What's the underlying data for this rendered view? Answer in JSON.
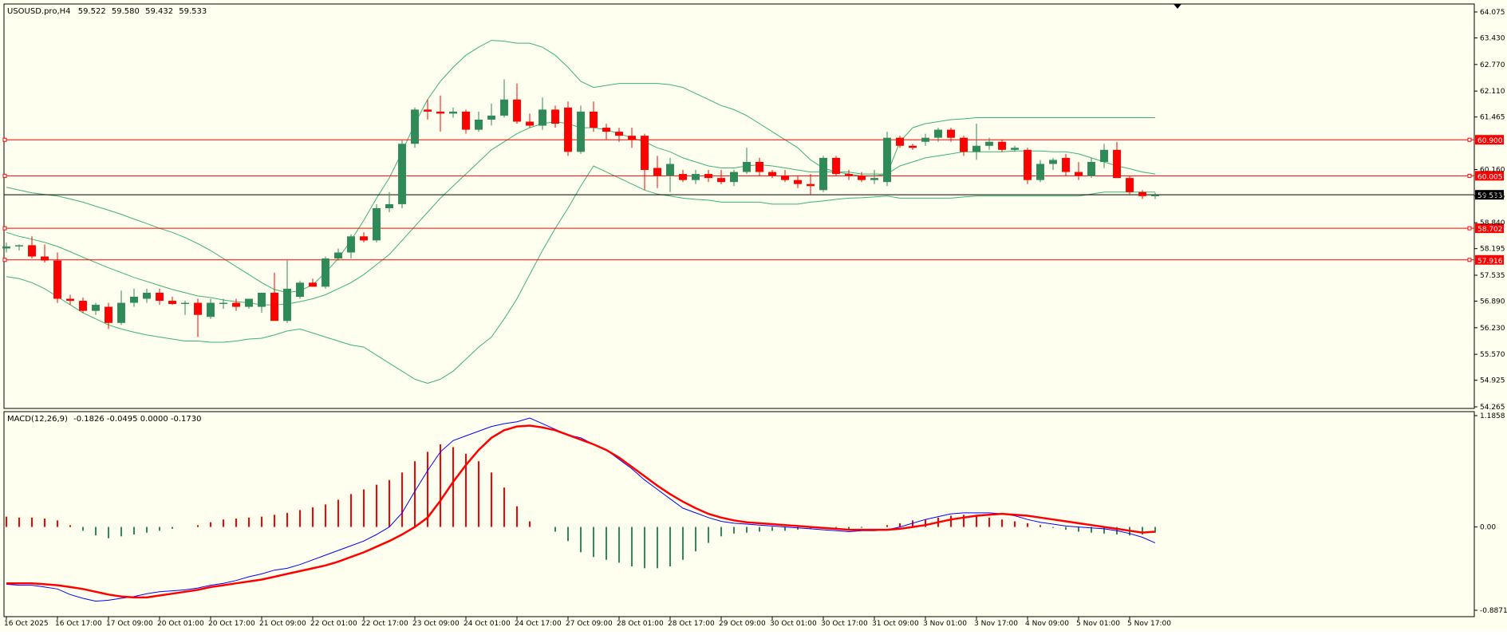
{
  "symbol_info": {
    "symbol": "USOUSD.pro,H4",
    "open": "59.522",
    "high": "59.580",
    "low": "59.432",
    "close": "59.533"
  },
  "macd_info": {
    "label": "MACD(12,26,9)",
    "values": "-0.1826 -0.0495 0.0000 -0.1730"
  },
  "colors": {
    "background": "#fffff0",
    "bull": "#2e8b57",
    "bear": "#ff0000",
    "band": "#3cb371",
    "level_line": "#ff0000",
    "price_line": "#000000",
    "macd_main": "#0000ff",
    "macd_signal": "#ff0000"
  },
  "price_axis": {
    "range": [
      54.265,
      64.075
    ],
    "ticks": [
      "64.075",
      "63.430",
      "62.770",
      "62.110",
      "61.465",
      "60.160",
      "59.505",
      "58.840",
      "58.195",
      "57.535",
      "56.890",
      "56.230",
      "55.570",
      "54.925",
      "54.265"
    ]
  },
  "horizontal_levels": [
    {
      "value": 60.9,
      "label": "60.900"
    },
    {
      "value": 60.005,
      "label": "60.005"
    },
    {
      "value": 58.702,
      "label": "58.702"
    },
    {
      "value": 57.916,
      "label": "57.916"
    }
  ],
  "current_price": {
    "value": 59.533,
    "label": "59.533"
  },
  "macd_axis": {
    "range": [
      -0.8871,
      1.1858
    ],
    "ticks": [
      "1.1858",
      "0.00",
      "-0.8871"
    ]
  },
  "time_axis": {
    "labels": [
      "16 Oct 2025",
      "16 Oct 17:00",
      "17 Oct 09:00",
      "20 Oct 01:00",
      "20 Oct 17:00",
      "21 Oct 09:00",
      "22 Oct 01:00",
      "22 Oct 17:00",
      "23 Oct 09:00",
      "24 Oct 01:00",
      "24 Oct 17:00",
      "27 Oct 09:00",
      "28 Oct 01:00",
      "28 Oct 17:00",
      "29 Oct 09:00",
      "30 Oct 01:00",
      "30 Oct 17:00",
      "31 Oct 09:00",
      "3 Nov 01:00",
      "3 Nov 17:00",
      "4 Nov 09:00",
      "5 Nov 01:00",
      "5 Nov 17:00"
    ],
    "label_every_n_bars": 4
  },
  "chart_data": {
    "type": "candlestick",
    "timeframe": "H4",
    "candles": [
      {
        "o": 58.2,
        "h": 58.35,
        "l": 58.1,
        "c": 58.25
      },
      {
        "o": 58.25,
        "h": 58.3,
        "l": 58.15,
        "c": 58.28
      },
      {
        "o": 58.28,
        "h": 58.5,
        "l": 57.95,
        "c": 58.0
      },
      {
        "o": 58.0,
        "h": 58.3,
        "l": 57.85,
        "c": 57.9
      },
      {
        "o": 57.9,
        "h": 58.1,
        "l": 56.85,
        "c": 56.95
      },
      {
        "o": 56.95,
        "h": 57.05,
        "l": 56.8,
        "c": 56.9
      },
      {
        "o": 56.9,
        "h": 56.98,
        "l": 56.6,
        "c": 56.65
      },
      {
        "o": 56.65,
        "h": 56.85,
        "l": 56.55,
        "c": 56.8
      },
      {
        "o": 56.75,
        "h": 56.85,
        "l": 56.2,
        "c": 56.35
      },
      {
        "o": 56.35,
        "h": 57.15,
        "l": 56.3,
        "c": 56.85
      },
      {
        "o": 56.85,
        "h": 57.2,
        "l": 56.75,
        "c": 57.0
      },
      {
        "o": 56.95,
        "h": 57.2,
        "l": 56.85,
        "c": 57.1
      },
      {
        "o": 57.1,
        "h": 57.2,
        "l": 56.8,
        "c": 56.9
      },
      {
        "o": 56.9,
        "h": 57.0,
        "l": 56.8,
        "c": 56.82
      },
      {
        "o": 56.82,
        "h": 56.9,
        "l": 56.55,
        "c": 56.85
      },
      {
        "o": 56.85,
        "h": 56.95,
        "l": 56.0,
        "c": 56.55
      },
      {
        "o": 56.5,
        "h": 56.95,
        "l": 56.45,
        "c": 56.85
      },
      {
        "o": 56.85,
        "h": 56.95,
        "l": 56.7,
        "c": 56.85
      },
      {
        "o": 56.85,
        "h": 56.95,
        "l": 56.65,
        "c": 56.75
      },
      {
        "o": 56.75,
        "h": 56.95,
        "l": 56.7,
        "c": 56.95
      },
      {
        "o": 56.75,
        "h": 57.05,
        "l": 56.6,
        "c": 57.1
      },
      {
        "o": 57.1,
        "h": 57.6,
        "l": 56.45,
        "c": 56.4
      },
      {
        "o": 56.4,
        "h": 57.9,
        "l": 56.35,
        "c": 57.2
      },
      {
        "o": 57.0,
        "h": 57.4,
        "l": 56.95,
        "c": 57.35
      },
      {
        "o": 57.35,
        "h": 57.45,
        "l": 57.25,
        "c": 57.25
      },
      {
        "o": 57.25,
        "h": 58.0,
        "l": 57.2,
        "c": 57.95
      },
      {
        "o": 57.95,
        "h": 58.2,
        "l": 57.9,
        "c": 58.1
      },
      {
        "o": 58.1,
        "h": 58.55,
        "l": 57.95,
        "c": 58.5
      },
      {
        "o": 58.5,
        "h": 58.6,
        "l": 58.35,
        "c": 58.4
      },
      {
        "o": 58.4,
        "h": 59.3,
        "l": 58.35,
        "c": 59.2
      },
      {
        "o": 59.2,
        "h": 59.6,
        "l": 59.1,
        "c": 59.3
      },
      {
        "o": 59.3,
        "h": 60.9,
        "l": 59.2,
        "c": 60.8
      },
      {
        "o": 60.8,
        "h": 61.7,
        "l": 60.7,
        "c": 61.65
      },
      {
        "o": 61.65,
        "h": 61.9,
        "l": 61.4,
        "c": 61.6
      },
      {
        "o": 61.6,
        "h": 62.0,
        "l": 61.1,
        "c": 61.55
      },
      {
        "o": 61.55,
        "h": 61.7,
        "l": 61.45,
        "c": 61.6
      },
      {
        "o": 61.6,
        "h": 61.65,
        "l": 61.05,
        "c": 61.15
      },
      {
        "o": 61.15,
        "h": 61.6,
        "l": 61.1,
        "c": 61.4
      },
      {
        "o": 61.4,
        "h": 61.8,
        "l": 61.25,
        "c": 61.5
      },
      {
        "o": 61.5,
        "h": 62.4,
        "l": 61.45,
        "c": 61.9
      },
      {
        "o": 61.9,
        "h": 62.3,
        "l": 61.3,
        "c": 61.35
      },
      {
        "o": 61.35,
        "h": 61.55,
        "l": 61.2,
        "c": 61.25
      },
      {
        "o": 61.25,
        "h": 61.95,
        "l": 61.15,
        "c": 61.65
      },
      {
        "o": 61.65,
        "h": 61.75,
        "l": 61.2,
        "c": 61.3
      },
      {
        "o": 61.7,
        "h": 61.85,
        "l": 60.5,
        "c": 60.6
      },
      {
        "o": 60.6,
        "h": 61.75,
        "l": 60.55,
        "c": 61.6
      },
      {
        "o": 61.6,
        "h": 61.85,
        "l": 61.1,
        "c": 61.2
      },
      {
        "o": 61.2,
        "h": 61.3,
        "l": 60.9,
        "c": 61.1
      },
      {
        "o": 61.1,
        "h": 61.2,
        "l": 60.85,
        "c": 61.0
      },
      {
        "o": 61.0,
        "h": 61.2,
        "l": 60.7,
        "c": 60.9
      },
      {
        "o": 61.0,
        "h": 61.05,
        "l": 59.65,
        "c": 60.15
      },
      {
        "o": 60.2,
        "h": 60.5,
        "l": 59.7,
        "c": 60.0
      },
      {
        "o": 60.0,
        "h": 60.45,
        "l": 59.6,
        "c": 60.3
      },
      {
        "o": 60.05,
        "h": 60.15,
        "l": 59.85,
        "c": 59.9
      },
      {
        "o": 59.9,
        "h": 60.15,
        "l": 59.8,
        "c": 60.05
      },
      {
        "o": 60.05,
        "h": 60.15,
        "l": 59.85,
        "c": 59.95
      },
      {
        "o": 59.95,
        "h": 60.15,
        "l": 59.8,
        "c": 59.85
      },
      {
        "o": 59.85,
        "h": 60.15,
        "l": 59.75,
        "c": 60.1
      },
      {
        "o": 60.1,
        "h": 60.7,
        "l": 60.05,
        "c": 60.35
      },
      {
        "o": 60.35,
        "h": 60.45,
        "l": 60.0,
        "c": 60.1
      },
      {
        "o": 60.1,
        "h": 60.15,
        "l": 59.95,
        "c": 60.0
      },
      {
        "o": 60.0,
        "h": 60.15,
        "l": 59.85,
        "c": 59.9
      },
      {
        "o": 59.9,
        "h": 60.0,
        "l": 59.7,
        "c": 59.8
      },
      {
        "o": 59.8,
        "h": 60.05,
        "l": 59.55,
        "c": 59.75
      },
      {
        "o": 59.65,
        "h": 60.5,
        "l": 59.6,
        "c": 60.45
      },
      {
        "o": 60.45,
        "h": 60.5,
        "l": 60.0,
        "c": 60.05
      },
      {
        "o": 60.05,
        "h": 60.15,
        "l": 59.9,
        "c": 60.0
      },
      {
        "o": 60.0,
        "h": 60.1,
        "l": 59.85,
        "c": 59.9
      },
      {
        "o": 59.9,
        "h": 60.15,
        "l": 59.8,
        "c": 59.95
      },
      {
        "o": 59.85,
        "h": 61.1,
        "l": 59.75,
        "c": 60.95
      },
      {
        "o": 60.95,
        "h": 61.0,
        "l": 60.7,
        "c": 60.75
      },
      {
        "o": 60.75,
        "h": 60.8,
        "l": 60.65,
        "c": 60.7
      },
      {
        "o": 60.85,
        "h": 61.05,
        "l": 60.75,
        "c": 60.95
      },
      {
        "o": 60.95,
        "h": 61.2,
        "l": 60.85,
        "c": 61.15
      },
      {
        "o": 61.15,
        "h": 61.2,
        "l": 60.85,
        "c": 60.95
      },
      {
        "o": 60.95,
        "h": 61.0,
        "l": 60.5,
        "c": 60.6
      },
      {
        "o": 60.6,
        "h": 61.3,
        "l": 60.4,
        "c": 60.75
      },
      {
        "o": 60.75,
        "h": 60.95,
        "l": 60.65,
        "c": 60.85
      },
      {
        "o": 60.85,
        "h": 60.9,
        "l": 60.6,
        "c": 60.65
      },
      {
        "o": 60.65,
        "h": 60.75,
        "l": 60.6,
        "c": 60.7
      },
      {
        "o": 60.65,
        "h": 60.7,
        "l": 59.8,
        "c": 59.9
      },
      {
        "o": 59.9,
        "h": 60.4,
        "l": 59.85,
        "c": 60.3
      },
      {
        "o": 60.3,
        "h": 60.45,
        "l": 60.15,
        "c": 60.4
      },
      {
        "o": 60.45,
        "h": 60.55,
        "l": 60.0,
        "c": 60.1
      },
      {
        "o": 60.1,
        "h": 60.35,
        "l": 59.9,
        "c": 60.0
      },
      {
        "o": 60.0,
        "h": 60.45,
        "l": 59.95,
        "c": 60.35
      },
      {
        "o": 60.35,
        "h": 60.8,
        "l": 60.2,
        "c": 60.65
      },
      {
        "o": 60.65,
        "h": 60.85,
        "l": 59.95,
        "c": 59.95
      },
      {
        "o": 59.95,
        "h": 60.0,
        "l": 59.55,
        "c": 59.6
      },
      {
        "o": 59.6,
        "h": 59.65,
        "l": 59.43,
        "c": 59.5
      },
      {
        "o": 59.52,
        "h": 59.58,
        "l": 59.43,
        "c": 59.53
      }
    ],
    "bollinger": {
      "upper": [
        59.72,
        59.65,
        59.58,
        59.54,
        59.5,
        59.43,
        59.35,
        59.25,
        59.15,
        59.05,
        58.93,
        58.82,
        58.7,
        58.6,
        58.47,
        58.32,
        58.15,
        57.95,
        57.75,
        57.55,
        57.35,
        57.18,
        57.1,
        57.15,
        57.3,
        57.6,
        57.95,
        58.4,
        58.9,
        59.45,
        59.95,
        60.6,
        61.3,
        61.9,
        62.35,
        62.7,
        63.0,
        63.2,
        63.37,
        63.35,
        63.3,
        63.3,
        63.2,
        63.0,
        62.7,
        62.35,
        62.2,
        62.25,
        62.3,
        62.3,
        62.3,
        62.3,
        62.27,
        62.2,
        62.05,
        61.9,
        61.75,
        61.65,
        61.5,
        61.3,
        61.1,
        60.9,
        60.7,
        60.4,
        60.2,
        60.1,
        60.05,
        60.0,
        60.0,
        60.05,
        60.85,
        61.2,
        61.3,
        61.35,
        61.4,
        61.42,
        61.45,
        61.45,
        61.45,
        61.45,
        61.45,
        61.45,
        61.45,
        61.45,
        61.45,
        61.45,
        61.45,
        61.45,
        61.45,
        61.45,
        61.45
      ],
      "middle": [
        58.6,
        58.5,
        58.43,
        58.35,
        58.25,
        58.12,
        57.98,
        57.85,
        57.72,
        57.6,
        57.48,
        57.38,
        57.28,
        57.18,
        57.1,
        57.02,
        56.98,
        56.92,
        56.88,
        56.85,
        56.8,
        56.8,
        56.82,
        56.88,
        56.95,
        57.05,
        57.2,
        57.35,
        57.55,
        57.8,
        58.05,
        58.4,
        58.75,
        59.1,
        59.45,
        59.75,
        60.05,
        60.35,
        60.65,
        60.85,
        61.05,
        61.2,
        61.3,
        61.35,
        61.3,
        61.2,
        61.2,
        61.15,
        61.05,
        60.95,
        60.85,
        60.7,
        60.6,
        60.45,
        60.35,
        60.25,
        60.2,
        60.2,
        60.25,
        60.28,
        60.25,
        60.2,
        60.15,
        60.1,
        60.1,
        60.1,
        60.1,
        60.05,
        60.05,
        60.05,
        60.25,
        60.35,
        60.45,
        60.5,
        60.55,
        60.6,
        60.6,
        60.6,
        60.6,
        60.62,
        60.62,
        60.62,
        60.6,
        60.6,
        60.55,
        60.45,
        60.35,
        60.25,
        60.18,
        60.1,
        60.05
      ],
      "lower": [
        57.5,
        57.45,
        57.35,
        57.2,
        57.0,
        56.8,
        56.6,
        56.45,
        56.3,
        56.2,
        56.12,
        56.05,
        56.0,
        55.95,
        55.9,
        55.9,
        55.87,
        55.87,
        55.9,
        55.95,
        55.97,
        56.05,
        56.15,
        56.2,
        56.1,
        56.0,
        55.9,
        55.8,
        55.75,
        55.55,
        55.35,
        55.15,
        54.95,
        54.85,
        54.95,
        55.15,
        55.45,
        55.75,
        56.0,
        56.45,
        56.95,
        57.55,
        58.15,
        58.7,
        59.2,
        59.75,
        60.25,
        60.1,
        59.95,
        59.8,
        59.65,
        59.55,
        59.5,
        59.45,
        59.42,
        59.4,
        59.35,
        59.35,
        59.35,
        59.35,
        59.3,
        59.3,
        59.3,
        59.35,
        59.38,
        59.42,
        59.45,
        59.46,
        59.48,
        59.5,
        59.45,
        59.45,
        59.45,
        59.45,
        59.45,
        59.48,
        59.5,
        59.5,
        59.5,
        59.5,
        59.5,
        59.5,
        59.5,
        59.5,
        59.5,
        59.55,
        59.6,
        59.6,
        59.6,
        59.6,
        59.6
      ]
    },
    "macd": {
      "main": [
        -0.61,
        -0.62,
        -0.62,
        -0.64,
        -0.66,
        -0.72,
        -0.76,
        -0.79,
        -0.78,
        -0.76,
        -0.74,
        -0.71,
        -0.69,
        -0.68,
        -0.67,
        -0.65,
        -0.62,
        -0.6,
        -0.57,
        -0.53,
        -0.5,
        -0.46,
        -0.44,
        -0.4,
        -0.35,
        -0.3,
        -0.25,
        -0.2,
        -0.15,
        -0.08,
        0.0,
        0.15,
        0.38,
        0.6,
        0.8,
        0.92,
        0.97,
        1.02,
        1.07,
        1.1,
        1.12,
        1.16,
        1.1,
        1.04,
        0.98,
        0.95,
        0.88,
        0.82,
        0.72,
        0.62,
        0.5,
        0.4,
        0.3,
        0.2,
        0.15,
        0.1,
        0.06,
        0.04,
        0.03,
        0.02,
        0.01,
        0.0,
        -0.01,
        -0.02,
        -0.03,
        -0.04,
        -0.05,
        -0.04,
        -0.04,
        -0.03,
        0.0,
        0.04,
        0.08,
        0.11,
        0.14,
        0.15,
        0.15,
        0.15,
        0.14,
        0.12,
        0.08,
        0.05,
        0.03,
        0.01,
        0.0,
        -0.01,
        -0.02,
        -0.04,
        -0.07,
        -0.11,
        -0.17
      ],
      "signal": [
        -0.6,
        -0.6,
        -0.6,
        -0.61,
        -0.62,
        -0.64,
        -0.66,
        -0.69,
        -0.72,
        -0.74,
        -0.75,
        -0.75,
        -0.73,
        -0.71,
        -0.69,
        -0.67,
        -0.64,
        -0.62,
        -0.6,
        -0.58,
        -0.56,
        -0.53,
        -0.5,
        -0.47,
        -0.44,
        -0.41,
        -0.37,
        -0.32,
        -0.27,
        -0.21,
        -0.15,
        -0.08,
        0.0,
        0.1,
        0.28,
        0.48,
        0.66,
        0.82,
        0.95,
        1.03,
        1.07,
        1.08,
        1.06,
        1.03,
        0.98,
        0.93,
        0.88,
        0.82,
        0.74,
        0.64,
        0.54,
        0.44,
        0.35,
        0.27,
        0.2,
        0.14,
        0.1,
        0.07,
        0.05,
        0.04,
        0.03,
        0.02,
        0.01,
        0.0,
        -0.01,
        -0.02,
        -0.03,
        -0.03,
        -0.03,
        -0.03,
        -0.02,
        0.0,
        0.02,
        0.05,
        0.08,
        0.1,
        0.12,
        0.13,
        0.14,
        0.13,
        0.12,
        0.1,
        0.08,
        0.06,
        0.04,
        0.02,
        0.0,
        -0.02,
        -0.04,
        -0.06,
        -0.05
      ],
      "histogram": [
        0.11,
        0.1,
        0.1,
        0.09,
        0.07,
        0.02,
        -0.04,
        -0.09,
        -0.12,
        -0.1,
        -0.08,
        -0.06,
        -0.04,
        -0.02,
        0.0,
        0.02,
        0.05,
        0.08,
        0.09,
        0.1,
        0.11,
        0.13,
        0.15,
        0.18,
        0.21,
        0.24,
        0.29,
        0.35,
        0.4,
        0.45,
        0.5,
        0.58,
        0.7,
        0.8,
        0.88,
        0.85,
        0.78,
        0.7,
        0.58,
        0.42,
        0.22,
        0.06,
        0.0,
        -0.05,
        -0.15,
        -0.27,
        -0.32,
        -0.35,
        -0.38,
        -0.42,
        -0.44,
        -0.44,
        -0.42,
        -0.35,
        -0.26,
        -0.17,
        -0.1,
        -0.07,
        -0.06,
        -0.05,
        -0.04,
        -0.04,
        -0.03,
        -0.02,
        -0.02,
        -0.02,
        -0.02,
        -0.01,
        0.0,
        0.02,
        0.04,
        0.07,
        0.08,
        0.1,
        0.12,
        0.13,
        0.12,
        0.1,
        0.08,
        0.06,
        0.04,
        0.02,
        -0.01,
        -0.03,
        -0.05,
        -0.06,
        -0.07,
        -0.08,
        -0.09,
        -0.08,
        -0.06
      ]
    }
  }
}
